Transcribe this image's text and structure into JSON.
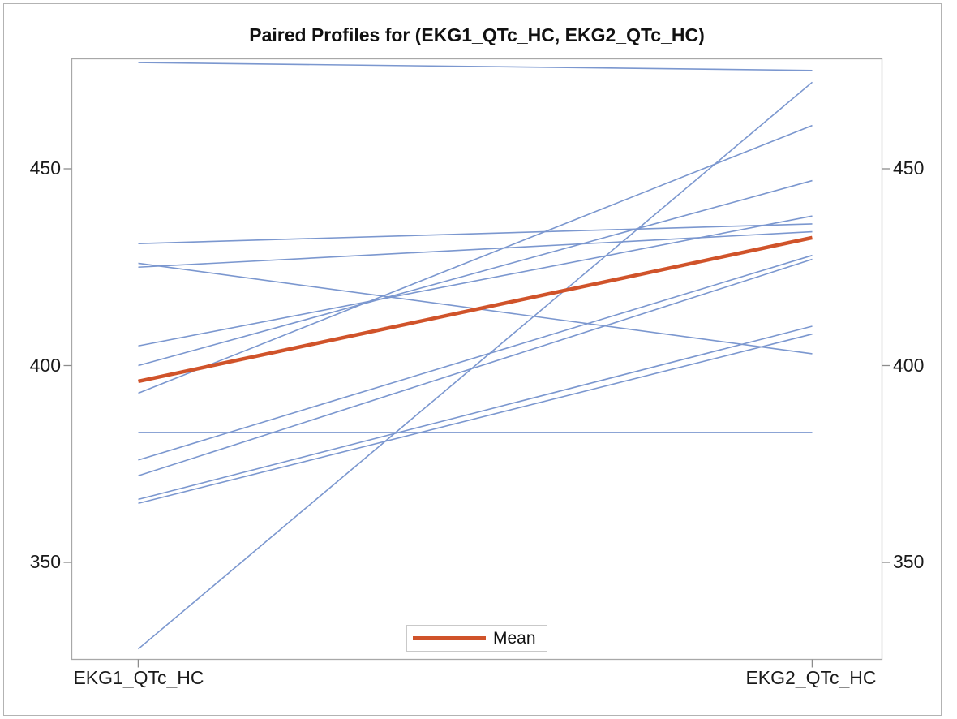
{
  "title": "Paired Profiles for (EKG1_QTc_HC, EKG2_QTc_HC)",
  "x_axis": {
    "left_label": "EKG1_QTc_HC",
    "right_label": "EKG2_QTc_HC"
  },
  "y_axis": {
    "ticks": [
      "450",
      "400",
      "350"
    ],
    "ticks_right": [
      "450",
      "400",
      "350"
    ]
  },
  "legend": {
    "label": "Mean",
    "position": "bottom-center"
  },
  "colors": {
    "profile_line": "#7b97cf",
    "mean_line": "#d0532a",
    "axis_border": "#a8a8a8",
    "tick": "#8c8c8c",
    "text": "#1a1a1a"
  },
  "chart_data": {
    "type": "line",
    "title": "Paired Profiles for (EKG1_QTc_HC, EKG2_QTc_HC)",
    "categories": [
      "EKG1_QTc_HC",
      "EKG2_QTc_HC"
    ],
    "xlabel": "",
    "ylabel": "",
    "y_ticks": [
      350,
      400,
      450
    ],
    "ylim": [
      325.5,
      478
    ],
    "grid": false,
    "legend_entries": [
      "Mean"
    ],
    "series": [
      {
        "name": "profile-1",
        "role": "profile",
        "values": [
          477,
          475
        ]
      },
      {
        "name": "profile-2",
        "role": "profile",
        "values": [
          431,
          436
        ]
      },
      {
        "name": "profile-3",
        "role": "profile",
        "values": [
          426,
          403
        ]
      },
      {
        "name": "profile-4",
        "role": "profile",
        "values": [
          425,
          434
        ]
      },
      {
        "name": "profile-5",
        "role": "profile",
        "values": [
          405,
          438
        ]
      },
      {
        "name": "profile-6",
        "role": "profile",
        "values": [
          400,
          447
        ]
      },
      {
        "name": "profile-7",
        "role": "profile",
        "values": [
          393,
          461
        ]
      },
      {
        "name": "profile-8",
        "role": "profile",
        "values": [
          383,
          383
        ]
      },
      {
        "name": "profile-9",
        "role": "profile",
        "values": [
          376,
          428
        ]
      },
      {
        "name": "profile-10",
        "role": "profile",
        "values": [
          372,
          427
        ]
      },
      {
        "name": "profile-11",
        "role": "profile",
        "values": [
          366,
          410
        ]
      },
      {
        "name": "profile-12",
        "role": "profile",
        "values": [
          365,
          408
        ]
      },
      {
        "name": "profile-13",
        "role": "profile",
        "values": [
          328,
          472
        ]
      },
      {
        "name": "Mean",
        "role": "mean",
        "values": [
          396,
          432.5
        ]
      }
    ]
  }
}
